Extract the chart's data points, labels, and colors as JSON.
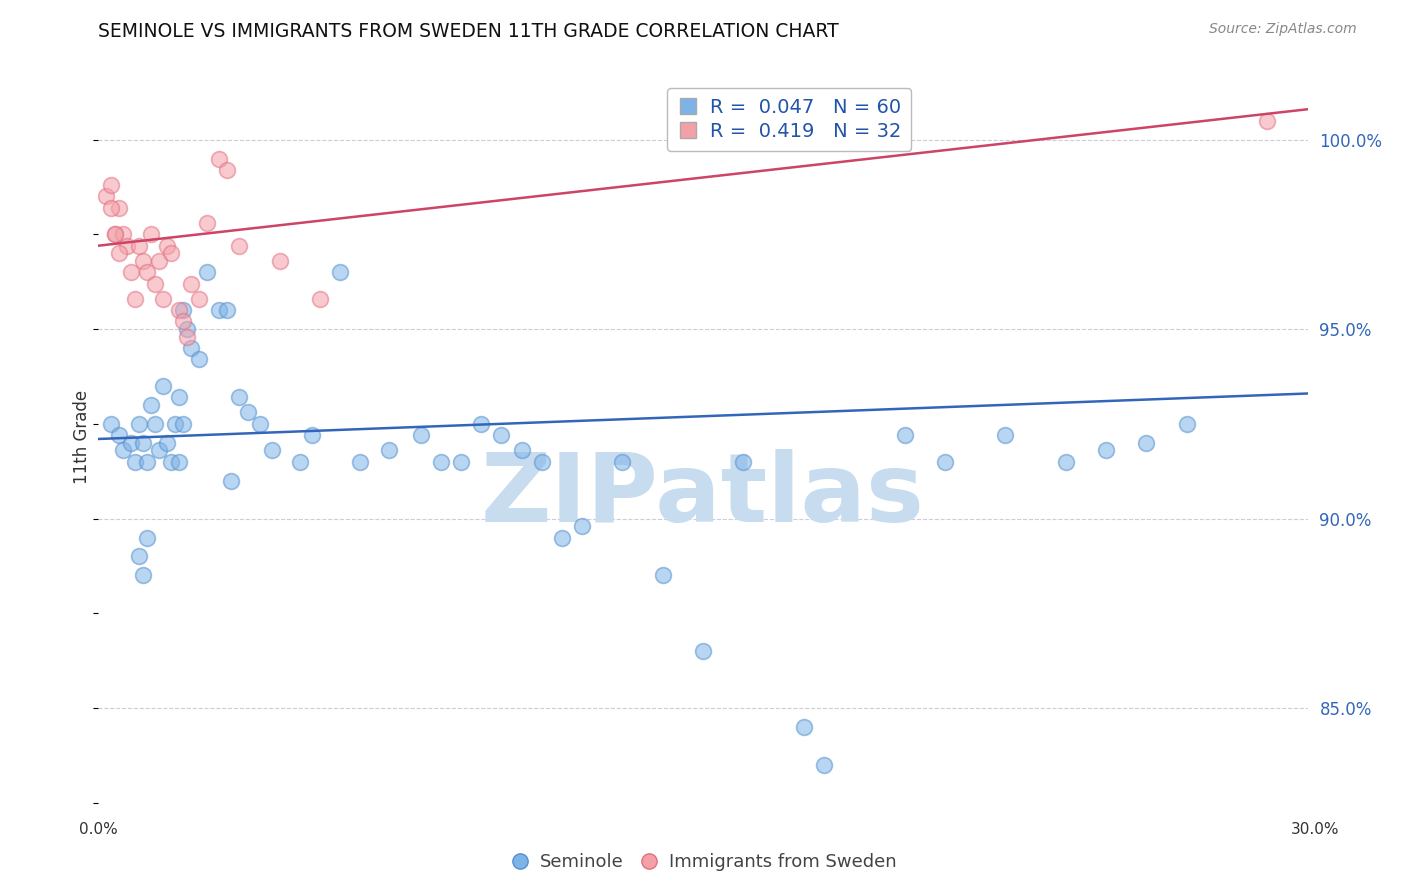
{
  "title": "SEMINOLE VS IMMIGRANTS FROM SWEDEN 11TH GRADE CORRELATION CHART",
  "source": "Source: ZipAtlas.com",
  "ylabel": "11th Grade",
  "xmin": 0.0,
  "xmax": 30.0,
  "ymin": 82.5,
  "ymax": 101.8,
  "yticks": [
    85.0,
    90.0,
    95.0,
    100.0
  ],
  "ytick_labels": [
    "85.0%",
    "90.0%",
    "95.0%",
    "100.0%"
  ],
  "blue_R": 0.047,
  "blue_N": 60,
  "pink_R": 0.419,
  "pink_N": 32,
  "blue_color": "#7EB3E8",
  "pink_color": "#F4A0A8",
  "blue_edge_color": "#5590CC",
  "pink_edge_color": "#E07080",
  "blue_line_color": "#3366BB",
  "pink_line_color": "#CC4466",
  "legend_label_blue": "Seminole",
  "legend_label_pink": "Immigrants from Sweden",
  "seminole_x": [
    0.3,
    0.5,
    0.6,
    0.8,
    0.9,
    1.0,
    1.1,
    1.2,
    1.3,
    1.4,
    1.5,
    1.6,
    1.7,
    1.8,
    1.9,
    2.0,
    2.1,
    2.2,
    2.3,
    2.5,
    2.7,
    3.0,
    3.2,
    3.5,
    3.7,
    4.0,
    4.3,
    5.0,
    5.3,
    6.0,
    6.5,
    7.2,
    8.0,
    8.5,
    9.0,
    9.5,
    10.0,
    10.5,
    11.0,
    11.5,
    12.0,
    13.0,
    14.0,
    15.0,
    16.0,
    17.5,
    18.0,
    20.0,
    21.0,
    22.5,
    24.0,
    25.0,
    26.0,
    27.0,
    1.0,
    1.1,
    1.2,
    2.0,
    2.1,
    3.3
  ],
  "seminole_y": [
    92.5,
    92.2,
    91.8,
    92.0,
    91.5,
    92.5,
    92.0,
    91.5,
    93.0,
    92.5,
    91.8,
    93.5,
    92.0,
    91.5,
    92.5,
    93.2,
    95.5,
    95.0,
    94.5,
    94.2,
    96.5,
    95.5,
    95.5,
    93.2,
    92.8,
    92.5,
    91.8,
    91.5,
    92.2,
    96.5,
    91.5,
    91.8,
    92.2,
    91.5,
    91.5,
    92.5,
    92.2,
    91.8,
    91.5,
    89.5,
    89.8,
    91.5,
    88.5,
    86.5,
    91.5,
    84.5,
    83.5,
    92.2,
    91.5,
    92.2,
    91.5,
    91.8,
    92.0,
    92.5,
    89.0,
    88.5,
    89.5,
    91.5,
    92.5,
    91.0
  ],
  "sweden_x": [
    0.2,
    0.3,
    0.4,
    0.5,
    0.6,
    0.7,
    0.8,
    0.9,
    1.0,
    1.1,
    1.2,
    1.3,
    1.4,
    1.5,
    1.6,
    1.7,
    1.8,
    2.0,
    2.1,
    2.2,
    2.3,
    2.5,
    2.7,
    3.0,
    3.2,
    3.5,
    4.5,
    5.5,
    0.3,
    0.4,
    0.5,
    29.0
  ],
  "sweden_y": [
    98.5,
    98.8,
    97.5,
    98.2,
    97.5,
    97.2,
    96.5,
    95.8,
    97.2,
    96.8,
    96.5,
    97.5,
    96.2,
    96.8,
    95.8,
    97.2,
    97.0,
    95.5,
    95.2,
    94.8,
    96.2,
    95.8,
    97.8,
    99.5,
    99.2,
    97.2,
    96.8,
    95.8,
    98.2,
    97.5,
    97.0,
    100.5
  ],
  "blue_line_x0": 0.0,
  "blue_line_y0": 92.1,
  "blue_line_x1": 30.0,
  "blue_line_y1": 93.3,
  "pink_line_x0": 0.0,
  "pink_line_y0": 97.2,
  "pink_line_x1": 30.0,
  "pink_line_y1": 100.8,
  "grid_color": "#CCCCDD",
  "background_color": "#FFFFFF",
  "watermark_text": "ZIPatlas",
  "watermark_color": "#C8DCF0",
  "watermark_fontsize": 70
}
